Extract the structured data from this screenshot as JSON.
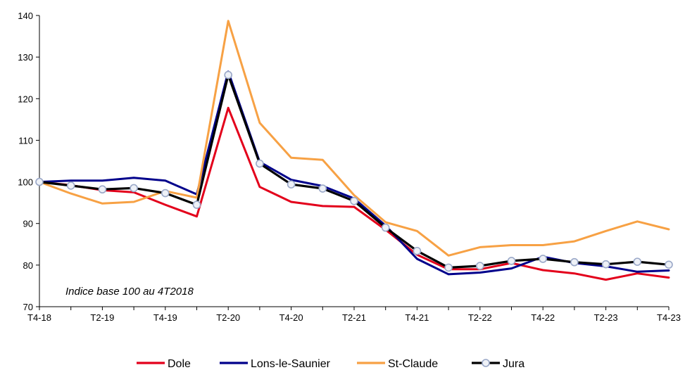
{
  "chart_data": {
    "type": "line",
    "title": "",
    "xlabel": "",
    "ylabel": "",
    "ylim": [
      70,
      140
    ],
    "yticks": [
      70,
      80,
      90,
      100,
      110,
      120,
      130,
      140
    ],
    "grid": false,
    "legend_position": "bottom",
    "annotation": "Indice base 100 au 4T2018",
    "x": [
      "T4-18",
      "T1-19",
      "T2-19",
      "T3-19",
      "T4-19",
      "T1-20",
      "T2-20",
      "T3-20",
      "T4-20",
      "T1-21",
      "T2-21",
      "T3-21",
      "T4-21",
      "T1-22",
      "T2-22",
      "T3-22",
      "T4-22",
      "T1-23",
      "T2-23",
      "T3-23",
      "T4-23"
    ],
    "x_tick_labels": [
      "T4-18",
      "T2-19",
      "T4-19",
      "T2-20",
      "T4-20",
      "T2-21",
      "T4-21",
      "T2-22",
      "T4-22",
      "T2-23",
      "T4-23"
    ],
    "series": [
      {
        "name": "Dole",
        "color": "#e3001b",
        "marker": "none",
        "values": [
          100,
          99.2,
          98.0,
          97.5,
          94.5,
          91.7,
          117.8,
          98.8,
          95.2,
          94.2,
          94.0,
          88.5,
          82.5,
          79.0,
          79.0,
          80.5,
          78.8,
          78.0,
          76.5,
          78.0,
          77.0
        ]
      },
      {
        "name": "Lons-le-Saunier",
        "color": "#00008b",
        "marker": "none",
        "values": [
          100,
          100.3,
          100.3,
          101.0,
          100.3,
          97.0,
          126.5,
          104.8,
          100.5,
          99.0,
          96.0,
          89.5,
          81.5,
          77.8,
          78.2,
          79.2,
          82.0,
          80.5,
          79.7,
          78.4,
          78.7
        ]
      },
      {
        "name": "St-Claude",
        "color": "#f7a144",
        "marker": "none",
        "values": [
          100,
          97.2,
          94.8,
          95.2,
          97.8,
          96.2,
          138.7,
          114.2,
          105.8,
          105.3,
          96.8,
          90.3,
          88.2,
          82.3,
          84.3,
          84.8,
          84.8,
          85.7,
          88.2,
          90.5,
          88.6
        ]
      },
      {
        "name": "Jura",
        "color": "#000000",
        "marker": "circle",
        "marker_fill": "#eef1f7",
        "marker_stroke": "#9aa8c8",
        "values": [
          100,
          99.1,
          98.2,
          98.5,
          97.3,
          94.5,
          125.7,
          104.4,
          99.4,
          98.4,
          95.4,
          89.0,
          83.4,
          79.4,
          79.8,
          81.0,
          81.5,
          80.7,
          80.2,
          80.8,
          80.1
        ]
      }
    ]
  }
}
